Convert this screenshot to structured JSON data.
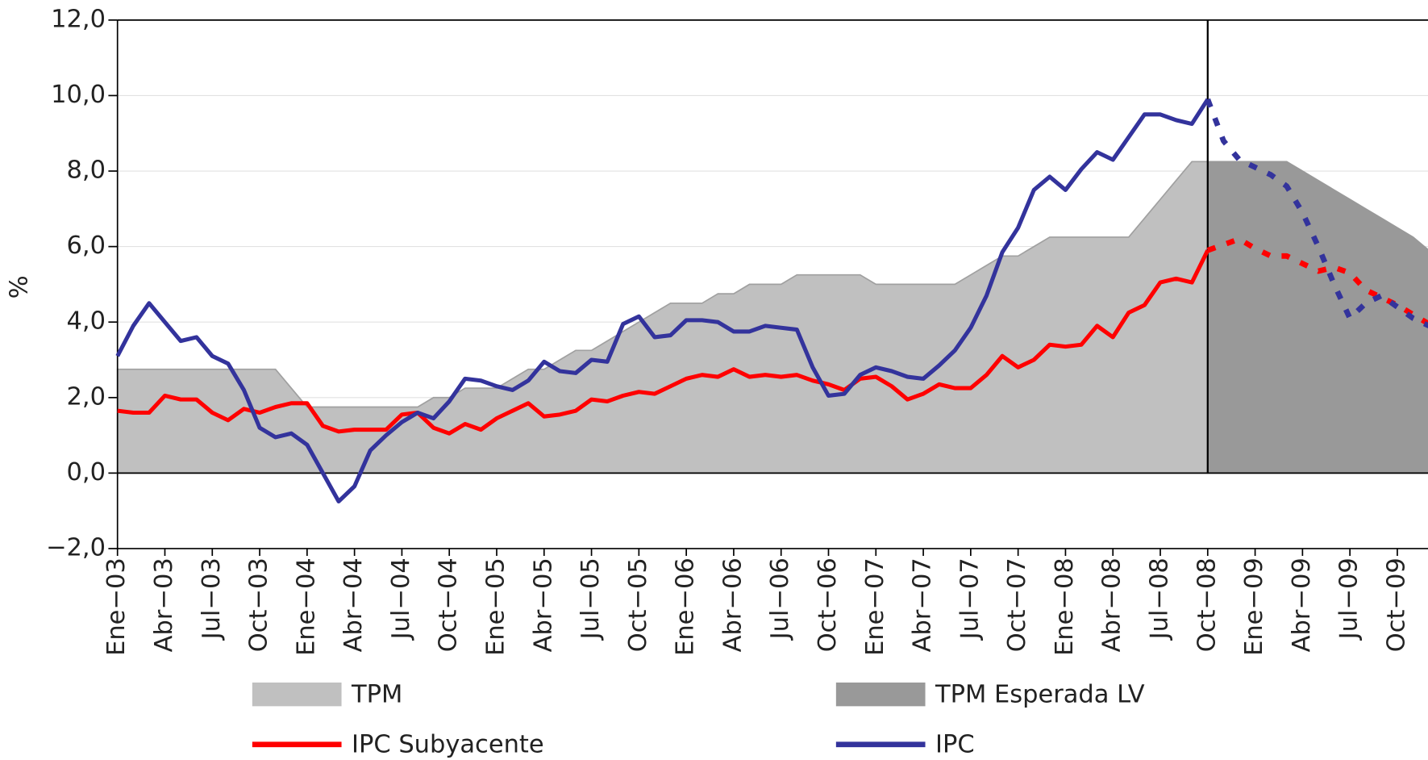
{
  "chart_data": {
    "type": "line",
    "y_label": "%",
    "categories": [
      "Ene−03",
      null,
      null,
      "Abr−03",
      null,
      null,
      "Jul−03",
      null,
      null,
      "Oct−03",
      null,
      null,
      "Ene−04",
      null,
      null,
      "Abr−04",
      null,
      null,
      "Jul−04",
      null,
      null,
      "Oct−04",
      null,
      null,
      "Ene−05",
      null,
      null,
      "Abr−05",
      null,
      null,
      "Jul−05",
      null,
      null,
      "Oct−05",
      null,
      null,
      "Ene−06",
      null,
      null,
      "Abr−06",
      null,
      null,
      "Jul−06",
      null,
      null,
      "Oct−06",
      null,
      null,
      "Ene−07",
      null,
      null,
      "Abr−07",
      null,
      null,
      "Jul−07",
      null,
      null,
      "Oct−07",
      null,
      null,
      "Ene−08",
      null,
      null,
      "Abr−08",
      null,
      null,
      "Jul−08",
      null,
      null,
      "Oct−08",
      null,
      null,
      "Ene−09",
      null,
      null,
      "Abr−09",
      null,
      null,
      "Jul−09",
      null,
      null,
      "Oct−09",
      null,
      null
    ],
    "vertical_line_at": "Oct−08",
    "ylim": [
      -2,
      12
    ],
    "yticks": [
      {
        "value": -2,
        "label": "−2,0"
      },
      {
        "value": 0,
        "label": "0,0"
      },
      {
        "value": 2,
        "label": "2,0"
      },
      {
        "value": 4,
        "label": "4,0"
      },
      {
        "value": 6,
        "label": "6,0"
      },
      {
        "value": 8,
        "label": "8,0"
      },
      {
        "value": 10,
        "label": "10,0"
      },
      {
        "value": 12,
        "label": "12,0"
      }
    ],
    "grid": true,
    "series": [
      {
        "name": "TPM",
        "kind": "area",
        "color": "#c0c0c0",
        "values": [
          2.75,
          2.75,
          2.75,
          2.75,
          2.75,
          2.75,
          2.75,
          2.75,
          2.75,
          2.75,
          2.75,
          2.25,
          1.75,
          1.75,
          1.75,
          1.75,
          1.75,
          1.75,
          1.75,
          1.75,
          2.0,
          2.0,
          2.25,
          2.25,
          2.25,
          2.5,
          2.75,
          2.75,
          3.0,
          3.25,
          3.25,
          3.5,
          3.75,
          4.0,
          4.25,
          4.5,
          4.5,
          4.5,
          4.75,
          4.75,
          5.0,
          5.0,
          5.0,
          5.25,
          5.25,
          5.25,
          5.25,
          5.25,
          5.0,
          5.0,
          5.0,
          5.0,
          5.0,
          5.0,
          5.25,
          5.5,
          5.75,
          5.75,
          6.0,
          6.25,
          6.25,
          6.25,
          6.25,
          6.25,
          6.25,
          6.75,
          7.25,
          7.75,
          8.25,
          8.25,
          null,
          null,
          null,
          null,
          null,
          null,
          null,
          null,
          null,
          null,
          null,
          null,
          null,
          null
        ]
      },
      {
        "name": "TPM Esperada LV",
        "kind": "area",
        "color": "#999999",
        "values": [
          null,
          null,
          null,
          null,
          null,
          null,
          null,
          null,
          null,
          null,
          null,
          null,
          null,
          null,
          null,
          null,
          null,
          null,
          null,
          null,
          null,
          null,
          null,
          null,
          null,
          null,
          null,
          null,
          null,
          null,
          null,
          null,
          null,
          null,
          null,
          null,
          null,
          null,
          null,
          null,
          null,
          null,
          null,
          null,
          null,
          null,
          null,
          null,
          null,
          null,
          null,
          null,
          null,
          null,
          null,
          null,
          null,
          null,
          null,
          null,
          null,
          null,
          null,
          null,
          null,
          null,
          null,
          null,
          null,
          8.25,
          8.25,
          8.25,
          8.25,
          8.25,
          8.25,
          8.0,
          7.75,
          7.5,
          7.25,
          7.0,
          6.75,
          6.5,
          6.25,
          5.9
        ]
      },
      {
        "name": "IPC Subyacente",
        "kind": "line",
        "color": "#ff0000",
        "values": [
          1.65,
          1.6,
          1.6,
          2.05,
          1.95,
          1.95,
          1.6,
          1.4,
          1.7,
          1.6,
          1.75,
          1.85,
          1.85,
          1.25,
          1.1,
          1.15,
          1.15,
          1.15,
          1.55,
          1.6,
          1.2,
          1.05,
          1.3,
          1.15,
          1.45,
          1.65,
          1.85,
          1.5,
          1.55,
          1.65,
          1.95,
          1.9,
          2.05,
          2.15,
          2.1,
          2.3,
          2.5,
          2.6,
          2.55,
          2.75,
          2.55,
          2.6,
          2.55,
          2.6,
          2.45,
          2.35,
          2.2,
          2.5,
          2.55,
          2.3,
          1.95,
          2.1,
          2.35,
          2.25,
          2.25,
          2.6,
          3.1,
          2.8,
          3.0,
          3.4,
          3.35,
          3.4,
          3.9,
          3.6,
          4.25,
          4.45,
          5.05,
          5.15,
          5.05,
          5.9,
          6.05,
          6.2,
          5.95,
          5.75,
          5.75,
          5.55,
          5.35,
          5.45,
          5.3,
          4.85,
          4.65,
          4.45,
          4.2,
          3.95
        ]
      },
      {
        "name": "IPC",
        "kind": "line",
        "color": "#33339c",
        "values": [
          3.1,
          3.9,
          4.5,
          4.0,
          3.5,
          3.6,
          3.1,
          2.9,
          2.2,
          1.2,
          0.95,
          1.05,
          0.75,
          0.0,
          -0.75,
          -0.35,
          0.6,
          1.0,
          1.35,
          1.6,
          1.45,
          1.9,
          2.5,
          2.45,
          2.3,
          2.2,
          2.45,
          2.95,
          2.7,
          2.65,
          3.0,
          2.95,
          3.95,
          4.15,
          3.6,
          3.65,
          4.05,
          4.05,
          4.0,
          3.75,
          3.75,
          3.9,
          3.85,
          3.8,
          2.8,
          2.05,
          2.1,
          2.6,
          2.8,
          2.7,
          2.55,
          2.5,
          2.85,
          3.25,
          3.85,
          4.7,
          5.85,
          6.5,
          7.5,
          7.85,
          7.5,
          8.05,
          8.5,
          8.3,
          8.9,
          9.5,
          9.5,
          9.35,
          9.25,
          9.9,
          8.8,
          8.3,
          8.1,
          7.9,
          7.6,
          6.9,
          6.0,
          5.0,
          4.1,
          4.5,
          4.7,
          4.4,
          4.1,
          3.9
        ]
      }
    ]
  }
}
